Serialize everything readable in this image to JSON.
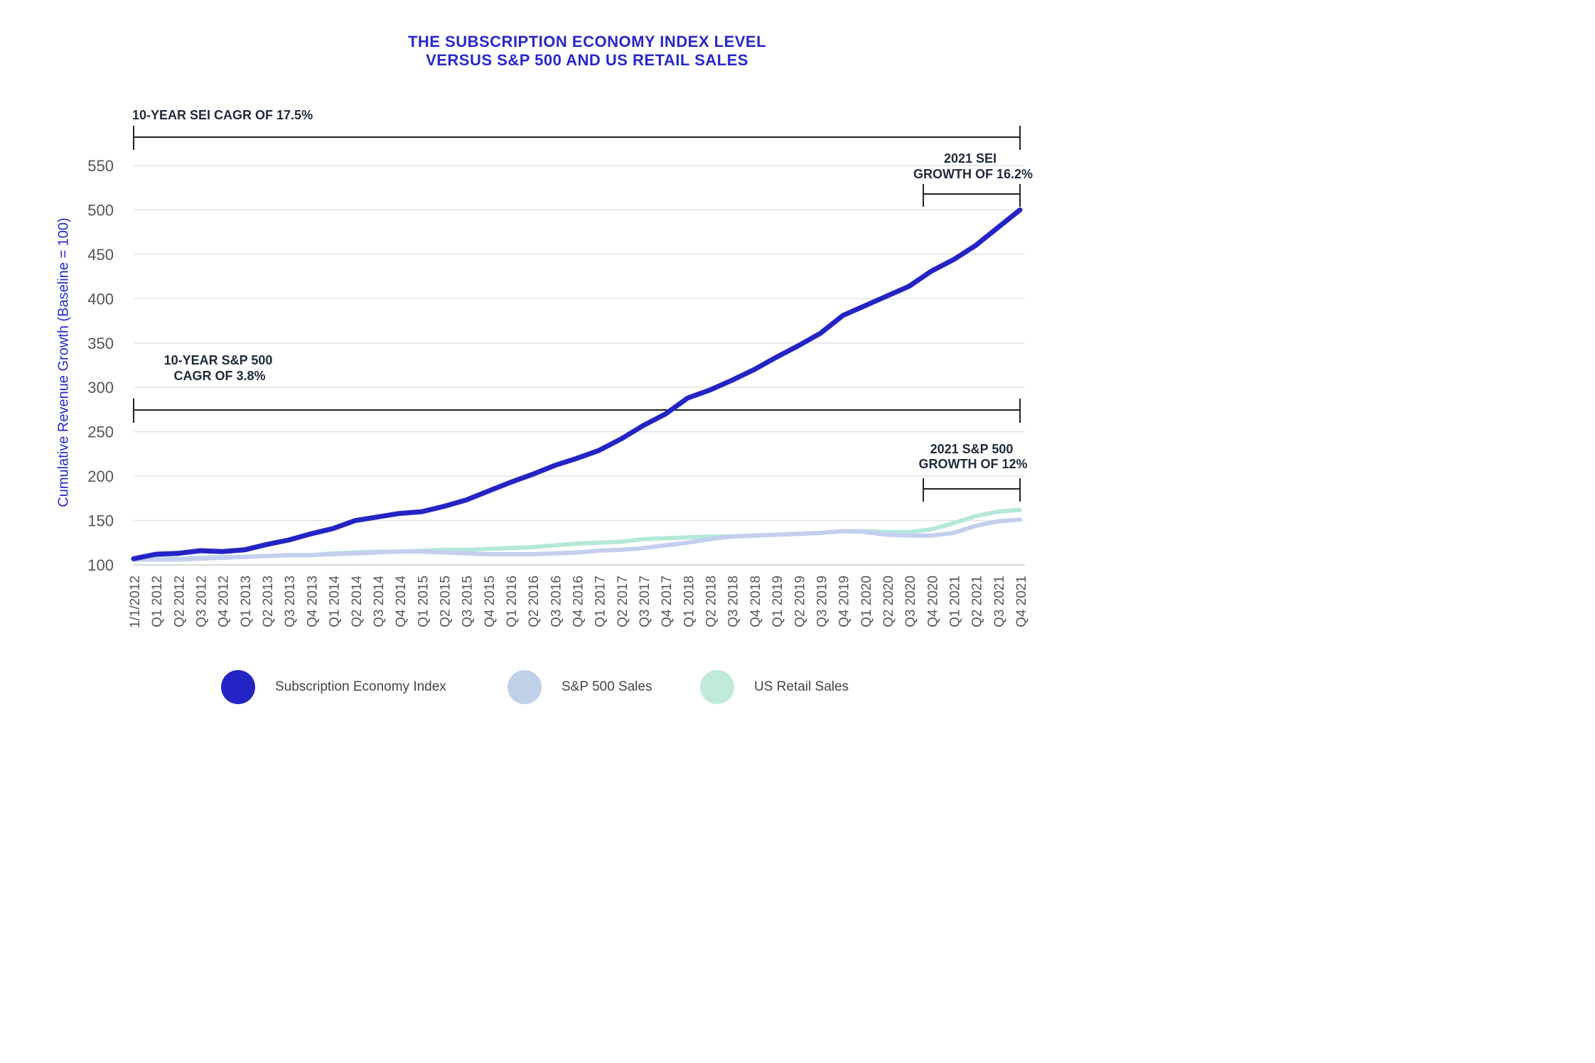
{
  "title": {
    "line1": "THE SUBSCRIPTION ECONOMY INDEX LEVEL",
    "line2": "VERSUS S&P 500 AND US RETAIL SALES"
  },
  "annotations": {
    "sei_cagr": "10-YEAR SEI CAGR OF 17.5%",
    "sp_cagr_line1": "10-YEAR S&P 500",
    "sp_cagr_line2": "CAGR OF 3.8%",
    "sei_2021_line1": "2021 SEI",
    "sei_2021_line2": "GROWTH OF 16.2%",
    "sp_2021_line1": "2021 S&P 500",
    "sp_2021_line2": "GROWTH OF 12%"
  },
  "legend": {
    "items": [
      {
        "label": "Subscription Economy Index",
        "color": "#2424c4"
      },
      {
        "label": "S&P 500 Sales",
        "color": "#b8cbe6"
      },
      {
        "label": "US Retail Sales",
        "color": "#b4e8d8"
      }
    ]
  },
  "chart_data": {
    "type": "line",
    "ylabel": "Cumulative Revenue Growth (Baseline = 100)",
    "ylim": [
      100,
      550
    ],
    "yticks": [
      100,
      150,
      200,
      250,
      300,
      350,
      400,
      450,
      500,
      550
    ],
    "grid": true,
    "legend_position": "bottom",
    "categories": [
      "1/1/2012",
      "Q1 2012",
      "Q2 2012",
      "Q3 2012",
      "Q4 2012",
      "Q1 2013",
      "Q2 2013",
      "Q3 2013",
      "Q4 2013",
      "Q1 2014",
      "Q2 2014",
      "Q3 2014",
      "Q4 2014",
      "Q1 2015",
      "Q2 2015",
      "Q3 2015",
      "Q4 2015",
      "Q1 2016",
      "Q2 2016",
      "Q3 2016",
      "Q4 2016",
      "Q1 2017",
      "Q2 2017",
      "Q3 2017",
      "Q4 2017",
      "Q1 2018",
      "Q2 2018",
      "Q3 2018",
      "Q4 2018",
      "Q1 2019",
      "Q2 2019",
      "Q3 2019",
      "Q4 2019",
      "Q1 2020",
      "Q2 2020",
      "Q3 2020",
      "Q4 2020",
      "Q1 2021",
      "Q2 2021",
      "Q3 2021",
      "Q4 2021"
    ],
    "series": [
      {
        "name": "Subscription Economy Index",
        "color": "#2424c4",
        "width": 7,
        "values": [
          107,
          112,
          113,
          116,
          115,
          117,
          123,
          128,
          135,
          141,
          150,
          154,
          158,
          160,
          166,
          173,
          183,
          193,
          202,
          212,
          220,
          229,
          242,
          257,
          270,
          288,
          297,
          308,
          320,
          334,
          347,
          361,
          381,
          392,
          403,
          414,
          431,
          444,
          460,
          480,
          500
        ]
      },
      {
        "name": "S&P 500 Sales",
        "color": "#c4cef0",
        "width": 6,
        "values": [
          106,
          106,
          106,
          107,
          108,
          109,
          110,
          111,
          111,
          112,
          113,
          114,
          115,
          115,
          114,
          113,
          112,
          112,
          112,
          113,
          114,
          116,
          117,
          119,
          122,
          125,
          129,
          132,
          133,
          134,
          135,
          136,
          138,
          137,
          134,
          133,
          133,
          136,
          144,
          149,
          151
        ]
      },
      {
        "name": "US Retail Sales",
        "color": "#b4e8d8",
        "width": 6,
        "values": [
          107,
          107,
          107,
          108,
          109,
          109,
          110,
          111,
          111,
          113,
          114,
          115,
          115,
          116,
          117,
          117,
          118,
          119,
          120,
          122,
          124,
          125,
          126,
          129,
          130,
          131,
          132,
          132,
          133,
          134,
          135,
          136,
          138,
          138,
          137,
          137,
          140,
          147,
          155,
          160,
          162
        ]
      }
    ]
  }
}
